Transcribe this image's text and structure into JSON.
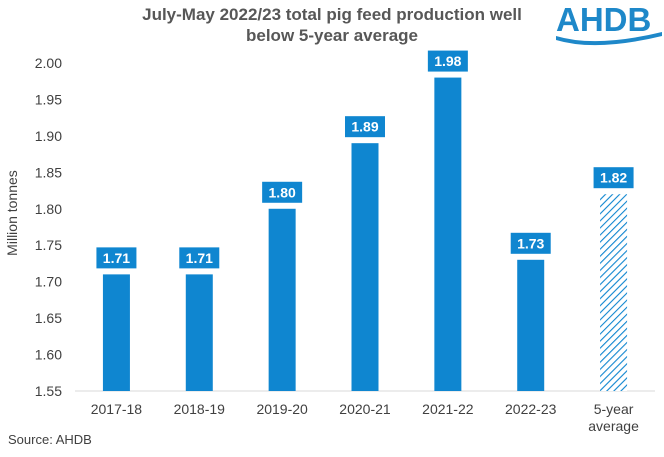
{
  "title_line1": "July-May 2022/23 total pig feed production well",
  "title_line2": "below 5-year average",
  "logo_text": "AHDB",
  "source": "Source: AHDB",
  "colors": {
    "bar": "#0f86d0",
    "label_bg": "#0f86d0",
    "label_text": "#ffffff",
    "hatch": "#0f86d0",
    "axis": "#d9d9d9"
  },
  "chart_data": {
    "type": "bar",
    "categories": [
      "2017-18",
      "2018-19",
      "2019-20",
      "2020-21",
      "2021-22",
      "2022-23",
      "5-year average"
    ],
    "values": [
      1.71,
      1.71,
      1.8,
      1.89,
      1.98,
      1.73,
      1.82
    ],
    "data_labels": [
      "1.71",
      "1.71",
      "1.80",
      "1.89",
      "1.98",
      "1.73",
      "1.82"
    ],
    "hatched": [
      false,
      false,
      false,
      false,
      false,
      false,
      true
    ],
    "ylabel": "Million tonnes",
    "xlabel": "",
    "ylim": [
      1.55,
      2.0
    ],
    "yticks": [
      "1.55",
      "1.60",
      "1.65",
      "1.70",
      "1.75",
      "1.80",
      "1.85",
      "1.90",
      "1.95",
      "2.00"
    ],
    "grid": false,
    "legend": "none"
  }
}
